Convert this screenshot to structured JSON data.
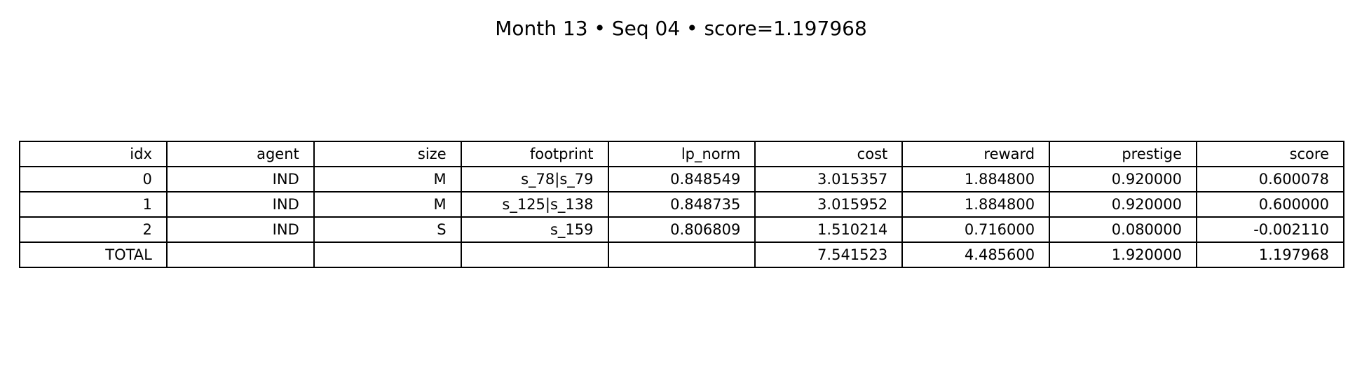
{
  "title": "Month 13 • Seq 04 • score=1.197968",
  "chart_data": {
    "type": "table",
    "title": "Month 13 • Seq 04 • score=1.197968",
    "columns": [
      "idx",
      "agent",
      "size",
      "footprint",
      "lp_norm",
      "cost",
      "reward",
      "prestige",
      "score"
    ],
    "rows": [
      [
        "0",
        "IND",
        "M",
        "s_78|s_79",
        "0.848549",
        "3.015357",
        "1.884800",
        "0.920000",
        "0.600078"
      ],
      [
        "1",
        "IND",
        "M",
        "s_125|s_138",
        "0.848735",
        "3.015952",
        "1.884800",
        "0.920000",
        "0.600000"
      ],
      [
        "2",
        "IND",
        "S",
        "s_159",
        "0.806809",
        "1.510214",
        "0.716000",
        "0.080000",
        "-0.002110"
      ],
      [
        "TOTAL",
        "",
        "",
        "",
        "",
        "7.541523",
        "4.485600",
        "1.920000",
        "1.197968"
      ]
    ]
  }
}
